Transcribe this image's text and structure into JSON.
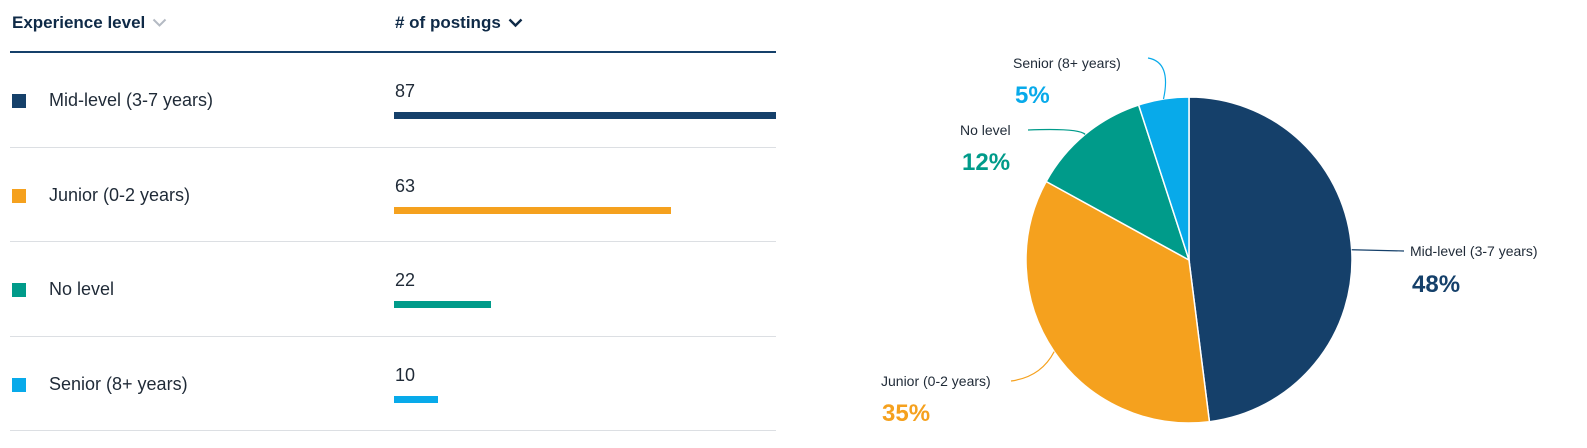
{
  "table": {
    "headers": {
      "level": "Experience level",
      "count": "# of postings"
    },
    "rows": [
      {
        "label": "Mid-level (3-7 years)",
        "count": "87",
        "value": 87,
        "color": "#15406a"
      },
      {
        "label": "Junior (0-2 years)",
        "count": "63",
        "value": 63,
        "color": "#f5a11e"
      },
      {
        "label": "No level",
        "count": "22",
        "value": 22,
        "color": "#009b8a"
      },
      {
        "label": "Senior (8+ years)",
        "count": "10",
        "value": 10,
        "color": "#08aaea"
      }
    ]
  },
  "chart_data": {
    "type": "pie",
    "categories": [
      "Mid-level (3-7 years)",
      "Junior (0-2 years)",
      "No level",
      "Senior (8+ years)"
    ],
    "values": [
      48,
      35,
      12,
      5
    ],
    "counts": [
      87,
      63,
      22,
      10
    ],
    "labels_pct": [
      "48%",
      "35%",
      "12%",
      "5%"
    ],
    "colors": [
      "#15406a",
      "#f5a11e",
      "#009b8a",
      "#08aaea"
    ],
    "start_angle": "12 o'clock",
    "direction": "clockwise"
  }
}
